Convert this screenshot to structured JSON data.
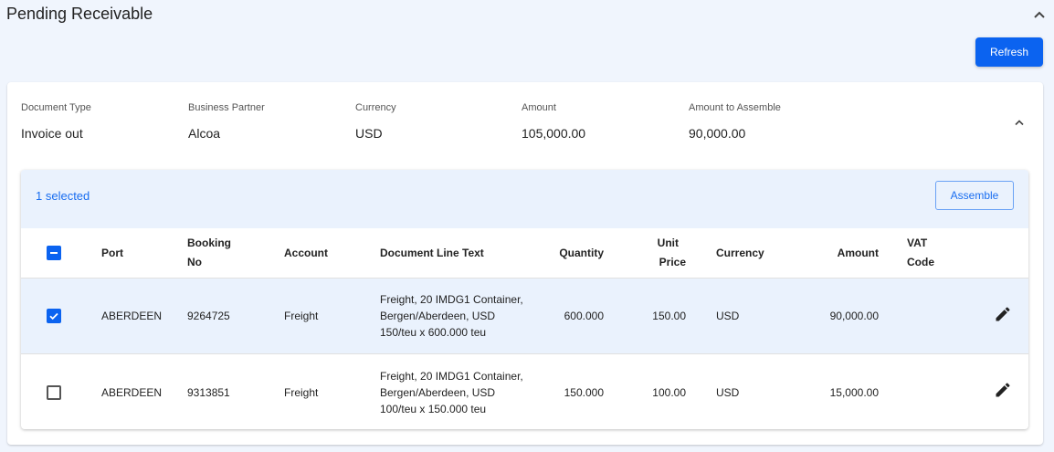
{
  "page": {
    "title": "Pending Receivable",
    "refresh_label": "Refresh"
  },
  "summary": {
    "fields": [
      {
        "label": "Document Type",
        "value": "Invoice out"
      },
      {
        "label": "Business Partner",
        "value": "Alcoa"
      },
      {
        "label": "Currency",
        "value": "USD"
      },
      {
        "label": "Amount",
        "value": "105,000.00"
      },
      {
        "label": "Amount to Assemble",
        "value": "90,000.00"
      }
    ]
  },
  "table": {
    "selected_text": "1 selected",
    "assemble_label": "Assemble",
    "headers": {
      "port": "Port",
      "booking_1": "Booking",
      "booking_2": "No",
      "account": "Account",
      "text": "Document Line Text",
      "quantity": "Quantity",
      "unit_1": "Unit",
      "unit_2": "Price",
      "currency": "Currency",
      "amount": "Amount",
      "vat_1": "VAT",
      "vat_2": "Code"
    },
    "rows": [
      {
        "selected": true,
        "port": "ABERDEEN",
        "booking": "9264725",
        "account": "Freight",
        "text": "Freight, 20 IMDG1 Container, Bergen/Aberdeen, USD 150/teu x 600.000 teu",
        "quantity": "600.000",
        "unit_price": "150.00",
        "currency": "USD",
        "amount": "90,000.00",
        "vat": ""
      },
      {
        "selected": false,
        "port": "ABERDEEN",
        "booking": "9313851",
        "account": "Freight",
        "text": "Freight, 20 IMDG1 Container, Bergen/Aberdeen, USD 100/teu x 150.000 teu",
        "quantity": "150.000",
        "unit_price": "100.00",
        "currency": "USD",
        "amount": "15,000.00",
        "vat": ""
      }
    ]
  },
  "colors": {
    "accent": "#0b63f0",
    "background": "#f0f5fd",
    "selected_row": "#eaf2fd"
  }
}
